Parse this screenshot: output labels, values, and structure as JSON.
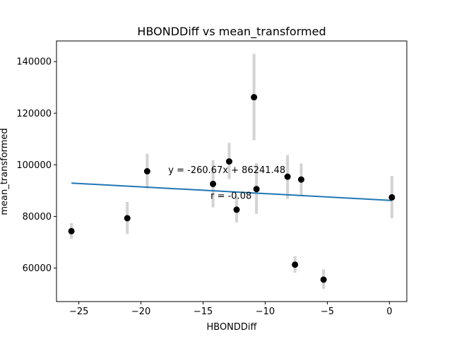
{
  "chart_data": {
    "type": "scatter",
    "title": "HBONDDiff vs mean_transformed",
    "xlabel": "HBONDDiff",
    "ylabel": "mean_transformed",
    "xlim": [
      -26.8,
      1.4
    ],
    "ylim": [
      47000,
      148000
    ],
    "xticks": [
      -25,
      -20,
      -15,
      -10,
      -5,
      0
    ],
    "xtick_labels": [
      "−25",
      "−20",
      "−15",
      "−10",
      "−5",
      "0"
    ],
    "yticks": [
      60000,
      80000,
      100000,
      120000,
      140000
    ],
    "ytick_labels": [
      "60000",
      "80000",
      "100000",
      "120000",
      "140000"
    ],
    "grid": false,
    "colors": {
      "points": "#000000",
      "errorbars": "#d3d3d3",
      "fit_line": "#1f77b4"
    },
    "points": [
      {
        "x": -25.6,
        "y": 74300,
        "ylo": 71300,
        "yhi": 77400
      },
      {
        "x": -21.1,
        "y": 79300,
        "ylo": 73200,
        "yhi": 85600
      },
      {
        "x": -19.5,
        "y": 97500,
        "ylo": 90800,
        "yhi": 104300
      },
      {
        "x": -14.2,
        "y": 92600,
        "ylo": 83500,
        "yhi": 101800
      },
      {
        "x": -12.9,
        "y": 101300,
        "ylo": 94500,
        "yhi": 108500
      },
      {
        "x": -12.3,
        "y": 82600,
        "ylo": 77700,
        "yhi": 87700
      },
      {
        "x": -10.9,
        "y": 126200,
        "ylo": 109500,
        "yhi": 143000
      },
      {
        "x": -10.7,
        "y": 90600,
        "ylo": 81000,
        "yhi": 100600
      },
      {
        "x": -8.2,
        "y": 95400,
        "ylo": 86800,
        "yhi": 103800
      },
      {
        "x": -7.6,
        "y": 61300,
        "ylo": 58200,
        "yhi": 64600
      },
      {
        "x": -7.1,
        "y": 94300,
        "ylo": 88000,
        "yhi": 100500
      },
      {
        "x": -5.3,
        "y": 55500,
        "ylo": 51900,
        "yhi": 59500
      },
      {
        "x": 0.2,
        "y": 87400,
        "ylo": 79300,
        "yhi": 95700
      }
    ],
    "fit": {
      "slope": -260.67,
      "intercept": 86241.48,
      "x_range": [
        -25.6,
        0.2
      ]
    },
    "annotations": [
      {
        "text": "y = -260.67x + 86241.48",
        "x": -17.8,
        "y": 96800
      },
      {
        "text": "r = -0.08",
        "x": -14.4,
        "y": 86800
      }
    ]
  }
}
